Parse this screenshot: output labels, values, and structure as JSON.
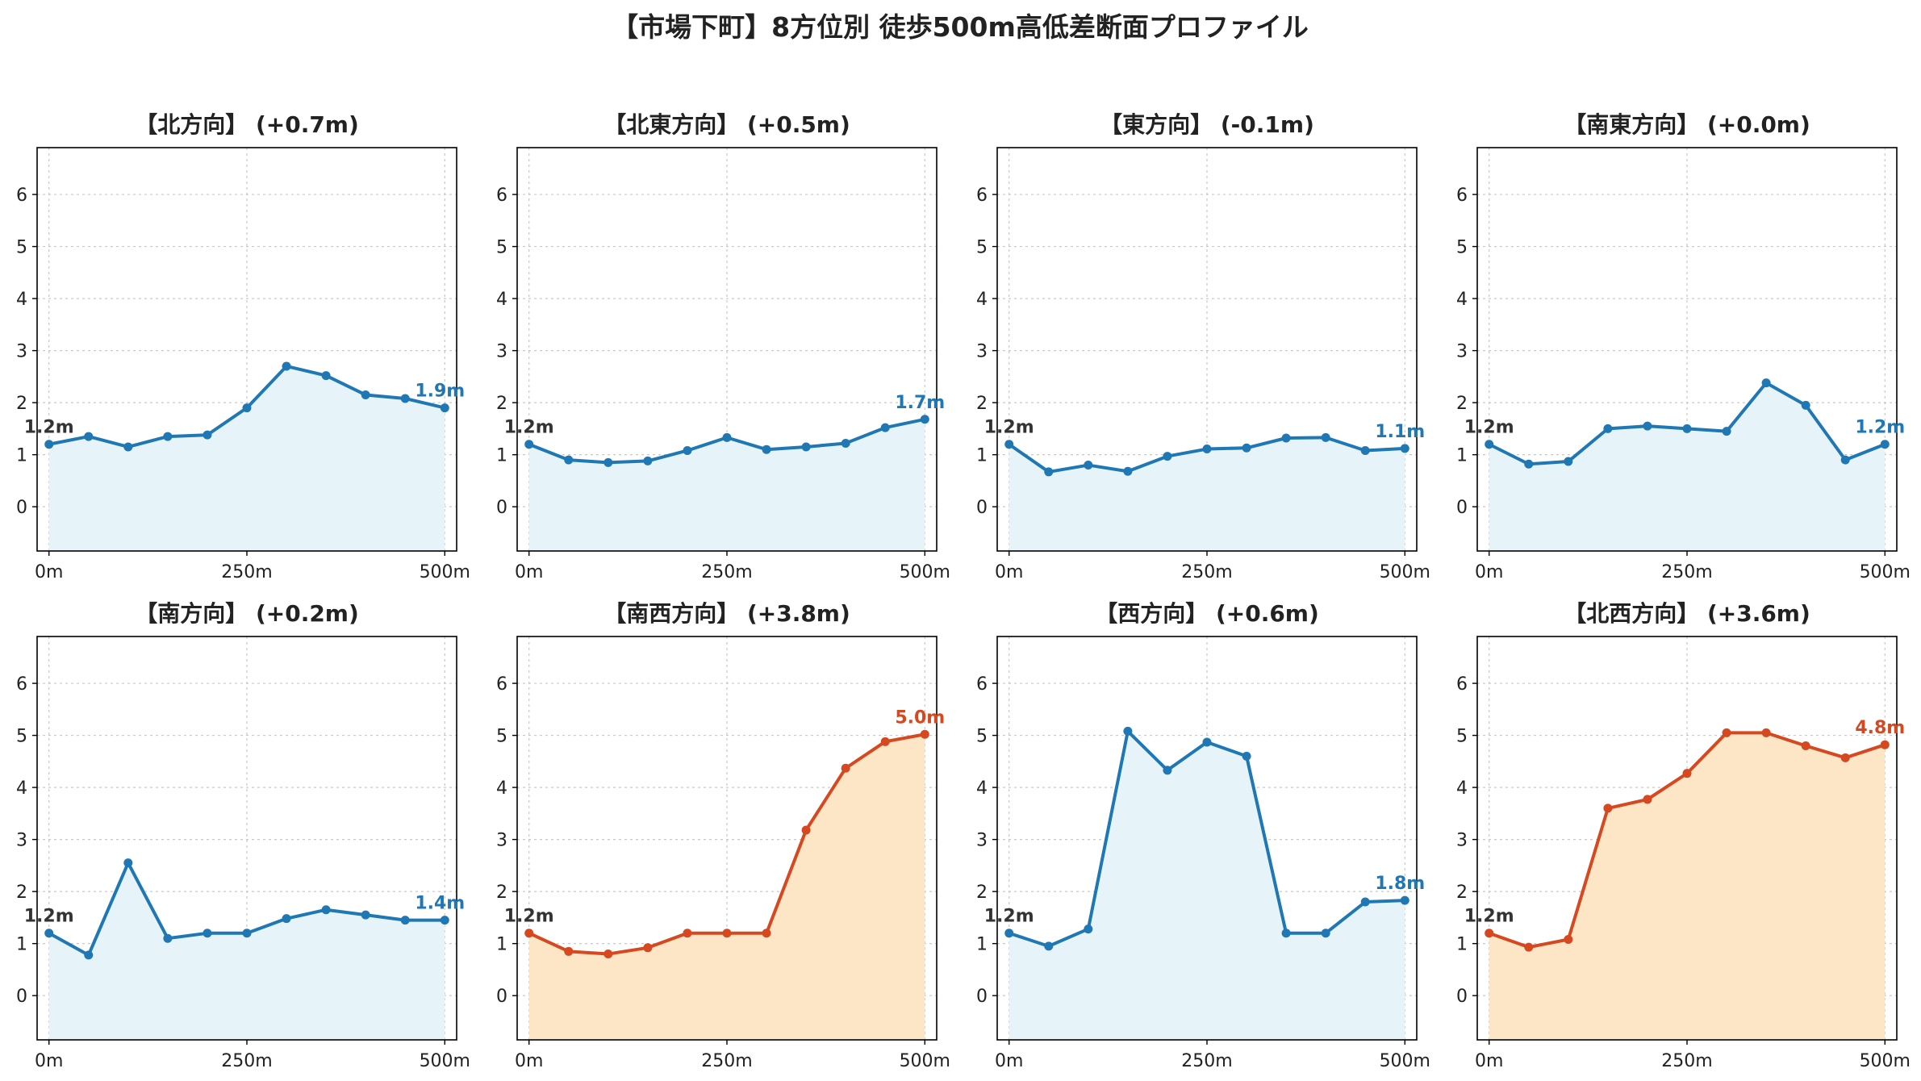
{
  "title": "【市場下町】8方位別 徒歩500m高低差断面プロファイル",
  "colors": {
    "flat_line": "#1f77b4",
    "flat_fill": "#e6f4fa",
    "steep_line": "#d6481f",
    "steep_fill": "#fde6c6",
    "start_label": "#333333",
    "grid": "#c8c8c8"
  },
  "chart_data": [
    {
      "type": "area",
      "title": "【北方向】 (+0.7m)",
      "theme": "flat",
      "x": [
        0,
        50,
        100,
        150,
        200,
        250,
        300,
        350,
        400,
        450,
        500
      ],
      "y": [
        1.2,
        1.35,
        1.15,
        1.35,
        1.38,
        1.9,
        2.7,
        2.52,
        2.15,
        2.08,
        1.9
      ],
      "start_label": "1.2m",
      "end_label": "1.9m",
      "xticks": [
        0,
        250,
        500
      ],
      "xtick_labels": [
        "0m",
        "250m",
        "500m"
      ],
      "yticks": [
        0,
        1,
        2,
        3,
        4,
        5,
        6
      ],
      "xlim": [
        -15,
        515
      ],
      "ylim": [
        -0.85,
        6.9
      ],
      "grid": true
    },
    {
      "type": "area",
      "title": "【北東方向】 (+0.5m)",
      "theme": "flat",
      "x": [
        0,
        50,
        100,
        150,
        200,
        250,
        300,
        350,
        400,
        450,
        500
      ],
      "y": [
        1.2,
        0.9,
        0.85,
        0.88,
        1.08,
        1.33,
        1.1,
        1.15,
        1.22,
        1.52,
        1.68
      ],
      "start_label": "1.2m",
      "end_label": "1.7m",
      "xticks": [
        0,
        250,
        500
      ],
      "xtick_labels": [
        "0m",
        "250m",
        "500m"
      ],
      "yticks": [
        0,
        1,
        2,
        3,
        4,
        5,
        6
      ],
      "xlim": [
        -15,
        515
      ],
      "ylim": [
        -0.85,
        6.9
      ],
      "grid": true
    },
    {
      "type": "area",
      "title": "【東方向】 (-0.1m)",
      "theme": "flat",
      "x": [
        0,
        50,
        100,
        150,
        200,
        250,
        300,
        350,
        400,
        450,
        500
      ],
      "y": [
        1.2,
        0.67,
        0.8,
        0.68,
        0.97,
        1.11,
        1.13,
        1.32,
        1.33,
        1.08,
        1.12
      ],
      "start_label": "1.2m",
      "end_label": "1.1m",
      "xticks": [
        0,
        250,
        500
      ],
      "xtick_labels": [
        "0m",
        "250m",
        "500m"
      ],
      "yticks": [
        0,
        1,
        2,
        3,
        4,
        5,
        6
      ],
      "xlim": [
        -15,
        515
      ],
      "ylim": [
        -0.85,
        6.9
      ],
      "grid": true
    },
    {
      "type": "area",
      "title": "【南東方向】 (+0.0m)",
      "theme": "flat",
      "x": [
        0,
        50,
        100,
        150,
        200,
        250,
        300,
        350,
        400,
        450,
        500
      ],
      "y": [
        1.2,
        0.82,
        0.87,
        1.5,
        1.55,
        1.5,
        1.45,
        2.38,
        1.95,
        0.9,
        1.2
      ],
      "start_label": "1.2m",
      "end_label": "1.2m",
      "xticks": [
        0,
        250,
        500
      ],
      "xtick_labels": [
        "0m",
        "250m",
        "500m"
      ],
      "yticks": [
        0,
        1,
        2,
        3,
        4,
        5,
        6
      ],
      "xlim": [
        -15,
        515
      ],
      "ylim": [
        -0.85,
        6.9
      ],
      "grid": true
    },
    {
      "type": "area",
      "title": "【南方向】 (+0.2m)",
      "theme": "flat",
      "x": [
        0,
        50,
        100,
        150,
        200,
        250,
        300,
        350,
        400,
        450,
        500
      ],
      "y": [
        1.2,
        0.78,
        2.55,
        1.1,
        1.2,
        1.2,
        1.48,
        1.65,
        1.55,
        1.45,
        1.45
      ],
      "start_label": "1.2m",
      "end_label": "1.4m",
      "xticks": [
        0,
        250,
        500
      ],
      "xtick_labels": [
        "0m",
        "250m",
        "500m"
      ],
      "yticks": [
        0,
        1,
        2,
        3,
        4,
        5,
        6
      ],
      "xlim": [
        -15,
        515
      ],
      "ylim": [
        -0.85,
        6.9
      ],
      "grid": true
    },
    {
      "type": "area",
      "title": "【南西方向】 (+3.8m)",
      "theme": "steep",
      "x": [
        0,
        50,
        100,
        150,
        200,
        250,
        300,
        350,
        400,
        450,
        500
      ],
      "y": [
        1.2,
        0.85,
        0.8,
        0.92,
        1.2,
        1.2,
        1.2,
        3.18,
        4.37,
        4.88,
        5.02
      ],
      "start_label": "1.2m",
      "end_label": "5.0m",
      "xticks": [
        0,
        250,
        500
      ],
      "xtick_labels": [
        "0m",
        "250m",
        "500m"
      ],
      "yticks": [
        0,
        1,
        2,
        3,
        4,
        5,
        6
      ],
      "xlim": [
        -15,
        515
      ],
      "ylim": [
        -0.85,
        6.9
      ],
      "grid": true
    },
    {
      "type": "area",
      "title": "【西方向】 (+0.6m)",
      "theme": "flat",
      "x": [
        0,
        50,
        100,
        150,
        200,
        250,
        300,
        350,
        400,
        450,
        500
      ],
      "y": [
        1.2,
        0.95,
        1.28,
        5.08,
        4.33,
        4.87,
        4.6,
        1.2,
        1.2,
        1.8,
        1.83
      ],
      "start_label": "1.2m",
      "end_label": "1.8m",
      "xticks": [
        0,
        250,
        500
      ],
      "xtick_labels": [
        "0m",
        "250m",
        "500m"
      ],
      "yticks": [
        0,
        1,
        2,
        3,
        4,
        5,
        6
      ],
      "xlim": [
        -15,
        515
      ],
      "ylim": [
        -0.85,
        6.9
      ],
      "grid": true
    },
    {
      "type": "area",
      "title": "【北西方向】 (+3.6m)",
      "theme": "steep",
      "x": [
        0,
        50,
        100,
        150,
        200,
        250,
        300,
        350,
        400,
        450,
        500
      ],
      "y": [
        1.2,
        0.93,
        1.08,
        3.6,
        3.77,
        4.27,
        5.05,
        5.05,
        4.8,
        4.57,
        4.82
      ],
      "start_label": "1.2m",
      "end_label": "4.8m",
      "xticks": [
        0,
        250,
        500
      ],
      "xtick_labels": [
        "0m",
        "250m",
        "500m"
      ],
      "yticks": [
        0,
        1,
        2,
        3,
        4,
        5,
        6
      ],
      "xlim": [
        -15,
        515
      ],
      "ylim": [
        -0.85,
        6.9
      ],
      "grid": true
    }
  ]
}
